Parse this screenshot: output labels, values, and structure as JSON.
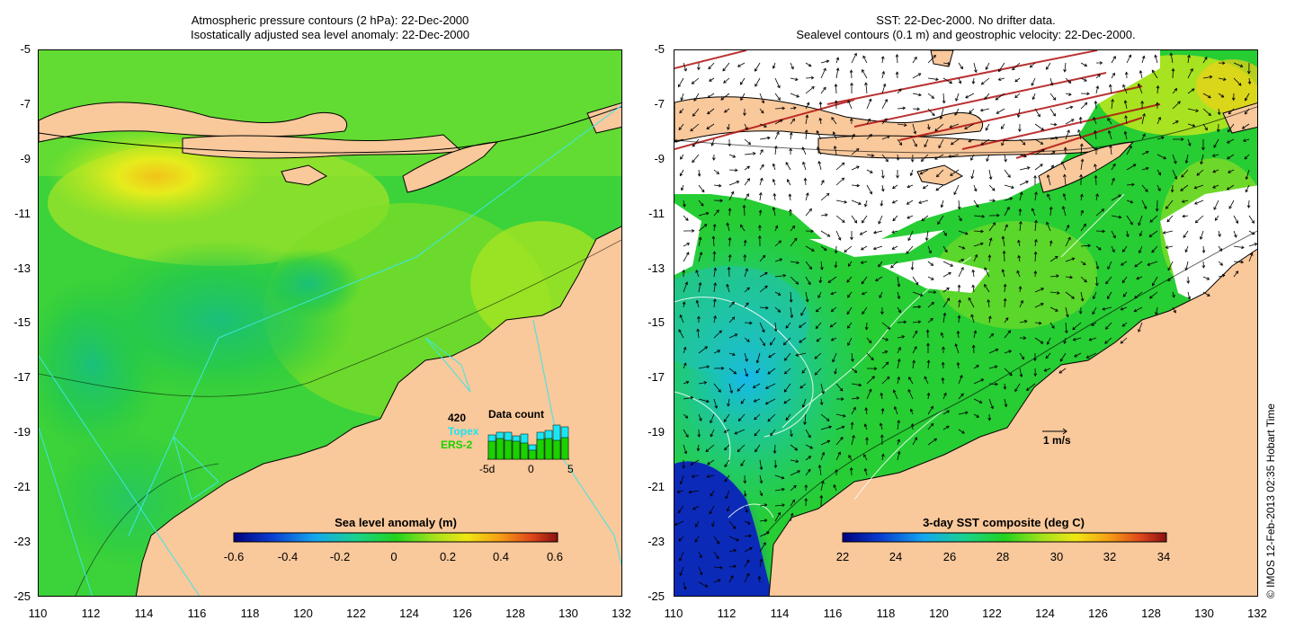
{
  "left_panel": {
    "title_line1": "Atmospheric pressure contours (2 hPa): 22-Dec-2000",
    "title_line2": "Isostatically adjusted sea level anomaly: 22-Dec-2000",
    "colorbar_title": "Sea level anomaly (m)",
    "colorbar_ticks": [
      "-0.6",
      "-0.4",
      "-0.2",
      "0",
      "0.2",
      "0.4",
      "0.6"
    ],
    "inset": {
      "count": "420",
      "title": "Data count",
      "series1": "Topex",
      "series2": "ERS-2",
      "x_ticks": [
        "-5d",
        "0",
        "5"
      ],
      "topex_values": [
        27,
        30,
        30,
        26,
        28,
        16,
        30,
        32,
        38,
        36
      ],
      "ers_values": [
        20,
        23,
        21,
        20,
        18,
        10,
        22,
        23,
        21,
        24
      ],
      "colors": {
        "topex": "#19e6f2",
        "ers": "#19d200"
      }
    }
  },
  "right_panel": {
    "title_line1": "SST: 22-Dec-2000. No drifter data.",
    "title_line2": "Sealevel contours (0.1 m) and geostrophic velocity: 22-Dec-2000.",
    "colorbar_title": "3-day SST composite (deg C)",
    "colorbar_ticks": [
      "22",
      "24",
      "26",
      "28",
      "30",
      "32",
      "34"
    ],
    "velocity_label": "1 m/s"
  },
  "axes": {
    "y_ticks": [
      "-5",
      "-7",
      "-9",
      "-11",
      "-13",
      "-15",
      "-17",
      "-19",
      "-21",
      "-23",
      "-25"
    ],
    "x_ticks": [
      "110",
      "112",
      "114",
      "116",
      "118",
      "120",
      "122",
      "124",
      "126",
      "128",
      "130",
      "132"
    ]
  },
  "credit": "© IMOS 12-Feb-2013 02:35 Hobart Time",
  "colors": {
    "land": "#f9c89b",
    "ocean_green": "#1fd21f",
    "cloud": "#ffffff",
    "contour": "#000000",
    "track": "#3ee6e6"
  }
}
